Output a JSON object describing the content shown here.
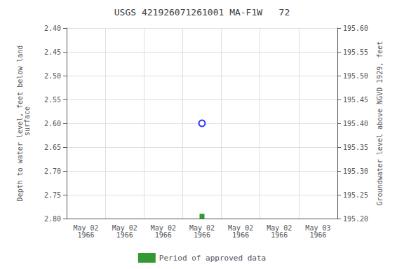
{
  "chart_data": {
    "type": "scatter",
    "title": "USGS 421926071261001 MA-F1W   72",
    "ylabel": "Depth to water level, feet below land\n surface",
    "y2label": "Groundwater level above NGVD 1929, feet",
    "categories": [
      "May 02\n1966",
      "May 02\n1966",
      "May 02\n1966",
      "May 02\n1966",
      "May 02\n1966",
      "May 02\n1966",
      "May 03\n1966"
    ],
    "series": [
      {
        "color": "blue",
        "marker": "circle_open",
        "values": [
          null,
          null,
          null,
          2.6,
          null,
          null,
          null
        ]
      },
      {
        "name": "Period of approved data",
        "color": "green",
        "marker": "square",
        "values": [
          null,
          null,
          null,
          2.795,
          null,
          null,
          null
        ]
      }
    ],
    "ylim": [
      2.8,
      2.4
    ],
    "yticks": [
      {
        "value": 2.4,
        "label": "2.40"
      },
      {
        "value": 2.45,
        "label": "2.45"
      },
      {
        "value": 2.5,
        "label": "2.50"
      },
      {
        "value": 2.55,
        "label": "2.55"
      },
      {
        "value": 2.6,
        "label": "2.60"
      },
      {
        "value": 2.65,
        "label": "2.65"
      },
      {
        "value": 2.7,
        "label": "2.70"
      },
      {
        "value": 2.75,
        "label": "2.75"
      },
      {
        "value": 2.8,
        "label": "2.80"
      }
    ],
    "y2lim": [
      195.2,
      195.6
    ],
    "y2ticks": [
      {
        "value": 195.6,
        "label": "195.60"
      },
      {
        "value": 195.55,
        "label": "195.55"
      },
      {
        "value": 195.5,
        "label": "195.50"
      },
      {
        "value": 195.45,
        "label": "195.45"
      },
      {
        "value": 195.4,
        "label": "195.40"
      },
      {
        "value": 195.35,
        "label": "195.35"
      },
      {
        "value": 195.3,
        "label": "195.30"
      },
      {
        "value": 195.25,
        "label": "195.25"
      },
      {
        "value": 195.2,
        "label": "195.20"
      }
    ],
    "grid": true,
    "legend": "bottom"
  }
}
